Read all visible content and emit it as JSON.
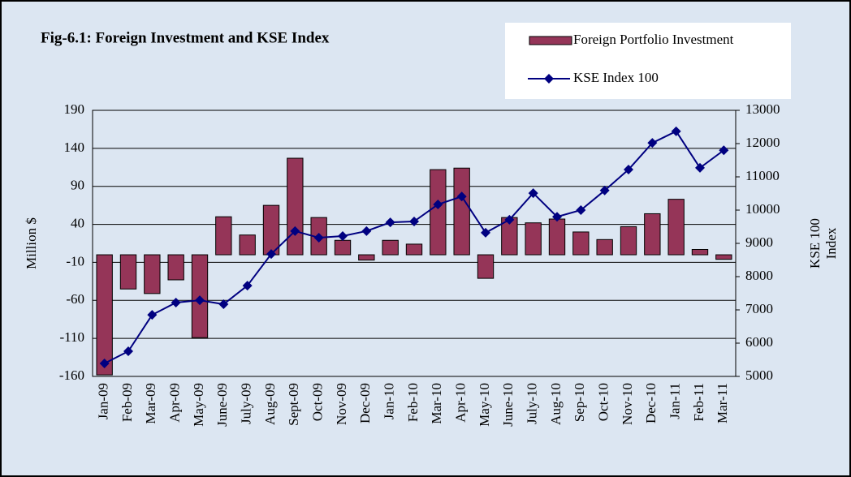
{
  "chart_data": {
    "type": "combo",
    "title": "Fig-6.1: Foreign Investment and KSE Index",
    "y_label": "Million $",
    "y2_label_lines": [
      "KSE 100",
      "Index"
    ],
    "categories": [
      "Jan-09",
      "Feb-09",
      "Mar-09",
      "Apr-09",
      "May-09",
      "June-09",
      "July-09",
      "Aug-09",
      "Sept-09",
      "Oct-09",
      "Nov-09",
      "Dec-09",
      "Jan-10",
      "Feb-10",
      "Mar-10",
      "Apr-10",
      "May-10",
      "June-10",
      "July-10",
      "Aug-10",
      "Sep-10",
      "Oct-10",
      "Nov-10",
      "Dec-10",
      "Jan-11",
      "Feb-11",
      "Mar-11"
    ],
    "series": [
      {
        "name": "Foreign Portfolio Investment",
        "type": "bar",
        "color": "#953558",
        "values": [
          -158,
          -45,
          -51,
          -33,
          -109,
          50,
          26,
          65,
          127,
          49,
          19,
          -7,
          19,
          14,
          112,
          114,
          -31,
          49,
          42,
          47,
          30,
          20,
          37,
          54,
          73,
          7,
          -6
        ]
      },
      {
        "name": "KSE Index 100",
        "type": "line",
        "axis": "y2",
        "color": "#000080",
        "values": [
          5390,
          5756,
          6850,
          7220,
          7290,
          7170,
          7730,
          8680,
          9370,
          9170,
          9220,
          9370,
          9630,
          9660,
          10170,
          10410,
          9320,
          9710,
          10510,
          9800,
          10000,
          10590,
          11220,
          12020,
          12370,
          11270,
          11800
        ]
      }
    ],
    "ylim": [
      -160,
      190
    ],
    "yticks": [
      -160,
      -110,
      -60,
      -10,
      40,
      90,
      140,
      190
    ],
    "y2lim": [
      5000,
      13000
    ],
    "y2ticks": [
      5000,
      6000,
      7000,
      8000,
      9000,
      10000,
      11000,
      12000,
      13000
    ],
    "grid": true
  }
}
